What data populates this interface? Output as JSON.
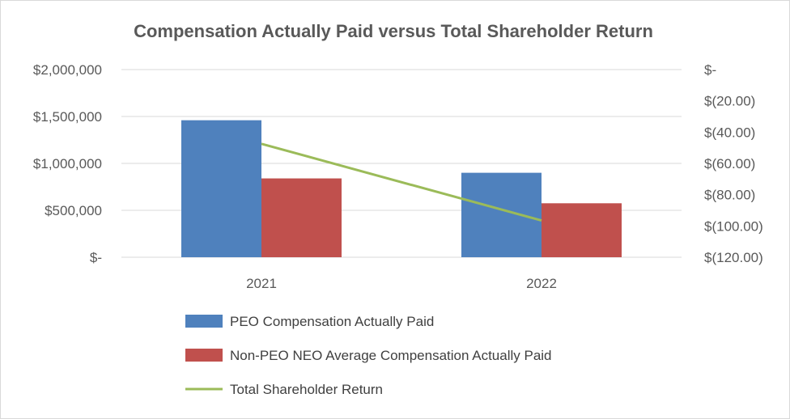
{
  "chart_data": {
    "type": "bar",
    "title": "Compensation Actually Paid versus Total Shareholder Return",
    "categories": [
      "2021",
      "2022"
    ],
    "series": [
      {
        "name": "PEO Compensation Actually Paid",
        "kind": "bar",
        "axis": "left",
        "color": "#4f81bd",
        "values": [
          1460000,
          900000
        ]
      },
      {
        "name": "Non-PEO NEO Average Compensation Actually Paid",
        "kind": "bar",
        "axis": "left",
        "color": "#c0504d",
        "values": [
          840000,
          575000
        ]
      },
      {
        "name": "Total Shareholder Return",
        "kind": "line",
        "axis": "right",
        "color": "#9bbb59",
        "values": [
          -47.5,
          -96.5
        ]
      }
    ],
    "y_left": {
      "min": 0,
      "max": 2000000,
      "ticks": [
        {
          "value": 2000000,
          "label": "$2,000,000"
        },
        {
          "value": 1500000,
          "label": "$1,500,000"
        },
        {
          "value": 1000000,
          "label": "$1,000,000"
        },
        {
          "value": 500000,
          "label": "$500,000"
        },
        {
          "value": 0,
          "label": "$-"
        }
      ]
    },
    "y_right": {
      "min": -120,
      "max": 0,
      "ticks": [
        {
          "value": 0,
          "label": "$-"
        },
        {
          "value": -20,
          "label": "$(20.00)"
        },
        {
          "value": -40,
          "label": "$(40.00)"
        },
        {
          "value": -60,
          "label": "$(60.00)"
        },
        {
          "value": -80,
          "label": "$(80.00)"
        },
        {
          "value": -100,
          "label": "$(100.00)"
        },
        {
          "value": -120,
          "label": "$(120.00)"
        }
      ]
    },
    "grid": true,
    "legend_position": "bottom"
  }
}
